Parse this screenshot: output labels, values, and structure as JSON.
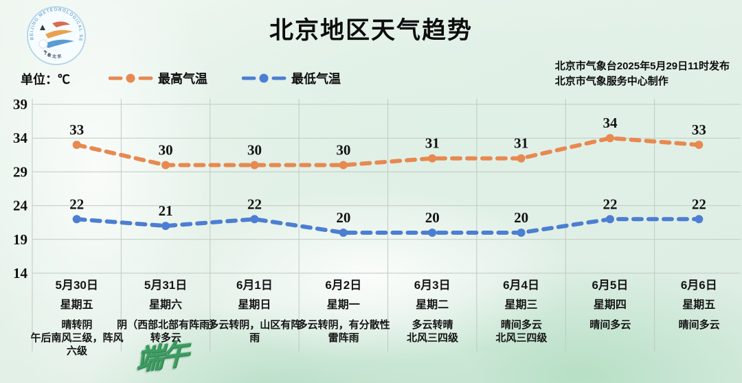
{
  "header": {
    "title": "北京地区天气趋势",
    "publisher_line1": "北京市气象台2025年5月29日11时发布",
    "publisher_line2": "北京市气象服务中心制作",
    "unit_label": "单位：℃",
    "logo_ring_text": "BEIJING METEOROLOGICAL SERVICE",
    "logo_bottom_text": "气象北京"
  },
  "legend": [
    {
      "label": "最高气温",
      "color": "#e78950"
    },
    {
      "label": "最低气温",
      "color": "#4c7ed2"
    }
  ],
  "festival_mark": "端午",
  "chart_data": {
    "type": "line",
    "title": "北京地区天气趋势",
    "unit": "℃",
    "categories": [
      "5月30日",
      "5月31日",
      "6月1日",
      "6月2日",
      "6月3日",
      "6月4日",
      "6月5日",
      "6月6日"
    ],
    "series": [
      {
        "name": "最高气温",
        "color": "#e78950",
        "style": "dashed",
        "values": [
          33,
          30,
          30,
          30,
          31,
          31,
          34,
          33
        ]
      },
      {
        "name": "最低气温",
        "color": "#4c7ed2",
        "style": "dashed",
        "values": [
          22,
          21,
          22,
          20,
          20,
          20,
          22,
          22
        ]
      }
    ],
    "yticks": [
      39,
      34,
      29,
      24,
      19,
      14
    ],
    "ylim": [
      14,
      39
    ],
    "grid": true,
    "grid_color": "#bfc9c1",
    "legend_position": "top-left",
    "data_labels": true
  },
  "days": [
    {
      "date": "5月30日",
      "weekday": "星期五",
      "weather": "晴转阴\n午后南风三级，阵风六级"
    },
    {
      "date": "5月31日",
      "weekday": "星期六",
      "weather": "阴（西部北部有阵雨）转多云"
    },
    {
      "date": "6月1日",
      "weekday": "星期日",
      "weather": "多云转阴，山区有阵雨"
    },
    {
      "date": "6月2日",
      "weekday": "星期一",
      "weather": "多云转阴，有分散性雷阵雨"
    },
    {
      "date": "6月3日",
      "weekday": "星期二",
      "weather": "多云转晴\n北风三四级"
    },
    {
      "date": "6月4日",
      "weekday": "星期三",
      "weather": "晴间多云\n北风三四级"
    },
    {
      "date": "6月5日",
      "weekday": "星期四",
      "weather": "晴间多云"
    },
    {
      "date": "6月6日",
      "weekday": "星期五",
      "weather": "晴间多云"
    }
  ]
}
